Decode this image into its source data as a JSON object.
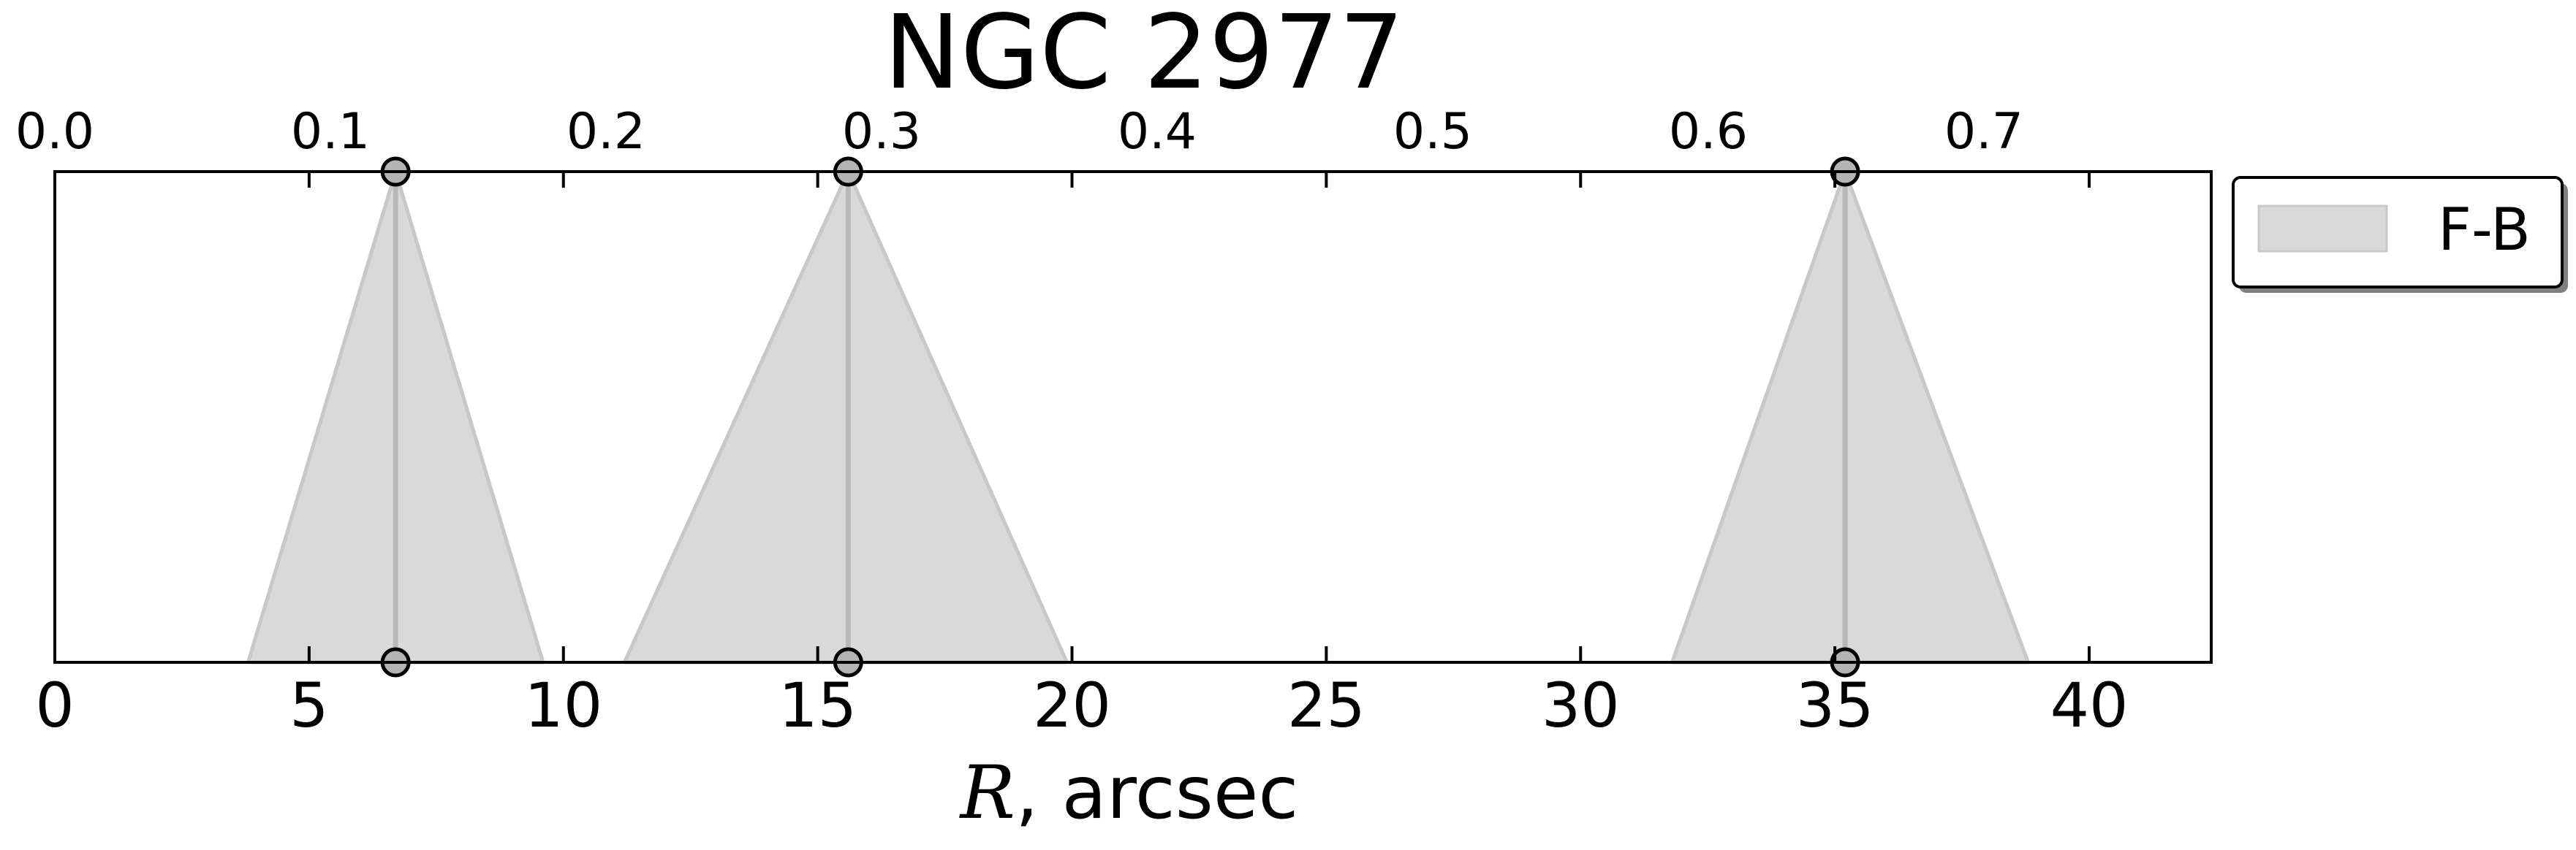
{
  "chart_data": {
    "type": "area",
    "title": "NGC 2977",
    "xlabel_var": "R",
    "xlabel_rest": ", arcsec",
    "xlim": [
      0,
      42.4
    ],
    "xticks": [
      0,
      5,
      10,
      15,
      20,
      25,
      30,
      35,
      40
    ],
    "top_xlim": [
      0,
      0.7825
    ],
    "top_xticks": [
      "0.0",
      "0.1",
      "0.2",
      "0.3",
      "0.4",
      "0.5",
      "0.6",
      "0.7"
    ],
    "ylim": [
      0,
      1
    ],
    "grid": false,
    "legend": {
      "position": "outside-right-top",
      "entries": [
        "F-B"
      ]
    },
    "series": [
      {
        "name": "F-B",
        "color": "#d9d9d9",
        "edge_color": "#c8c8c8",
        "line_color": "#b8b8b8",
        "marker_color": "#b4b4b4",
        "features": [
          {
            "center": 6.7,
            "left": 3.8,
            "right": 9.6
          },
          {
            "center": 15.6,
            "left": 11.2,
            "right": 19.9
          },
          {
            "center": 35.2,
            "left": 31.8,
            "right": 38.8
          }
        ]
      }
    ]
  }
}
